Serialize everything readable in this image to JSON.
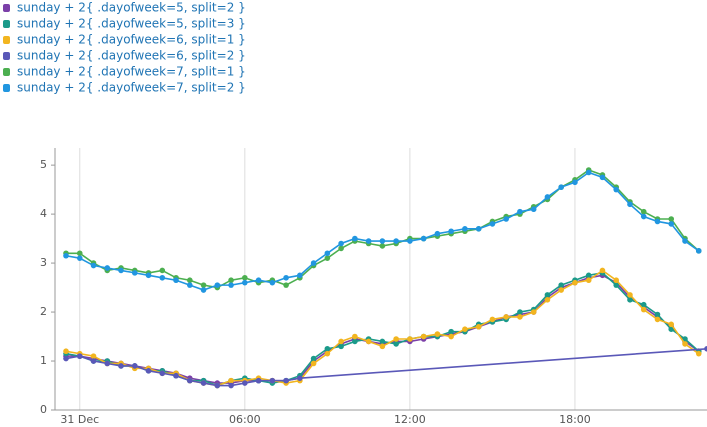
{
  "chart_data": {
    "type": "line",
    "x": [
      -0.5,
      0,
      0.5,
      1,
      1.5,
      2,
      2.5,
      3,
      3.5,
      4,
      4.5,
      5,
      5.5,
      6,
      6.5,
      7,
      7.5,
      8,
      8.5,
      9,
      9.5,
      10,
      10.5,
      11,
      11.5,
      12,
      12.5,
      13,
      13.5,
      14,
      14.5,
      15,
      15.5,
      16,
      16.5,
      17,
      17.5,
      18,
      18.5,
      19,
      19.5,
      20,
      20.5,
      21,
      21.5,
      22,
      22.5
    ],
    "xlim": [
      -0.9,
      22.8
    ],
    "xticks": [
      {
        "value": 0,
        "label": "31 Dec"
      },
      {
        "value": 6,
        "label": "06:00"
      },
      {
        "value": 12,
        "label": "12:00"
      },
      {
        "value": 18,
        "label": "18:00"
      }
    ],
    "ylim": [
      0,
      5.35
    ],
    "yticks": [
      0,
      1,
      2,
      3,
      4,
      5
    ],
    "grid": true,
    "series": [
      {
        "name": "sunday + 2{ .dayofweek=5, split=2 }",
        "color": "#7b3fa8",
        "values": [
          1.1,
          1.1,
          1.05,
          1.0,
          0.95,
          0.9,
          0.85,
          0.8,
          0.75,
          0.65,
          0.6,
          0.55,
          0.55,
          0.6,
          0.6,
          0.6,
          0.6,
          0.65,
          1.0,
          1.2,
          1.35,
          1.45,
          1.4,
          1.35,
          1.4,
          1.4,
          1.45,
          1.5,
          1.55,
          1.6,
          1.7,
          1.8,
          1.9,
          1.95,
          2.0,
          2.3,
          2.5,
          2.6,
          2.7,
          2.75,
          2.6,
          2.3,
          2.1,
          1.9,
          1.7,
          1.4,
          1.2
        ]
      },
      {
        "name": "sunday + 2{ .dayofweek=5, split=3 }",
        "color": "#1b9a8a",
        "values": [
          1.15,
          1.1,
          1.0,
          1.0,
          0.9,
          0.9,
          0.8,
          0.8,
          0.7,
          0.6,
          0.6,
          0.5,
          0.6,
          0.65,
          0.6,
          0.55,
          0.6,
          0.7,
          1.05,
          1.25,
          1.3,
          1.4,
          1.45,
          1.4,
          1.35,
          1.45,
          1.5,
          1.5,
          1.6,
          1.6,
          1.75,
          1.8,
          1.85,
          2.0,
          2.05,
          2.35,
          2.55,
          2.65,
          2.75,
          2.8,
          2.55,
          2.25,
          2.15,
          1.95,
          1.65,
          1.45,
          1.2
        ]
      },
      {
        "name": "sunday + 2{ .dayofweek=6, split=1 }",
        "color": "#f2b51f",
        "values": [
          1.2,
          1.15,
          1.1,
          0.95,
          0.95,
          0.85,
          0.85,
          0.75,
          0.75,
          0.6,
          0.55,
          0.5,
          0.6,
          0.6,
          0.65,
          0.6,
          0.55,
          0.6,
          0.95,
          1.15,
          1.4,
          1.5,
          1.4,
          1.3,
          1.45,
          1.45,
          1.5,
          1.55,
          1.5,
          1.65,
          1.7,
          1.85,
          1.9,
          1.9,
          2.0,
          2.25,
          2.45,
          2.6,
          2.65,
          2.85,
          2.65,
          2.35,
          2.05,
          1.85,
          1.75,
          1.35,
          1.15
        ]
      },
      {
        "name": "sunday + 2{ .dayofweek=6, split=2 }",
        "color": "#5a58b8",
        "x": [
          -0.5,
          0,
          0.5,
          1,
          1.5,
          2,
          2.5,
          3,
          3.5,
          4,
          4.5,
          5,
          5.5,
          6,
          6.5,
          7,
          7.5,
          8,
          22.8
        ],
        "values": [
          1.05,
          1.1,
          1.0,
          0.95,
          0.9,
          0.9,
          0.8,
          0.75,
          0.7,
          0.6,
          0.55,
          0.5,
          0.5,
          0.55,
          0.6,
          0.6,
          0.6,
          0.65,
          1.25
        ]
      },
      {
        "name": "sunday + 2{ .dayofweek=7, split=1 }",
        "color": "#4caf50",
        "values": [
          3.2,
          3.2,
          3.0,
          2.85,
          2.9,
          2.85,
          2.8,
          2.85,
          2.7,
          2.65,
          2.55,
          2.5,
          2.65,
          2.7,
          2.6,
          2.65,
          2.55,
          2.7,
          2.95,
          3.1,
          3.3,
          3.45,
          3.4,
          3.35,
          3.4,
          3.5,
          3.5,
          3.55,
          3.6,
          3.65,
          3.7,
          3.85,
          3.95,
          4.0,
          4.15,
          4.3,
          4.55,
          4.7,
          4.9,
          4.8,
          4.55,
          4.25,
          4.05,
          3.9,
          3.9,
          3.5,
          3.25
        ]
      },
      {
        "name": "sunday + 2{ .dayofweek=7, split=2 }",
        "color": "#2196e0",
        "values": [
          3.15,
          3.1,
          2.95,
          2.9,
          2.85,
          2.8,
          2.75,
          2.7,
          2.65,
          2.55,
          2.45,
          2.55,
          2.55,
          2.6,
          2.65,
          2.6,
          2.7,
          2.75,
          3.0,
          3.2,
          3.4,
          3.5,
          3.45,
          3.45,
          3.45,
          3.45,
          3.5,
          3.6,
          3.65,
          3.7,
          3.7,
          3.8,
          3.9,
          4.05,
          4.1,
          4.35,
          4.55,
          4.65,
          4.85,
          4.75,
          4.5,
          4.2,
          3.95,
          3.85,
          3.8,
          3.45,
          3.25
        ]
      }
    ]
  }
}
